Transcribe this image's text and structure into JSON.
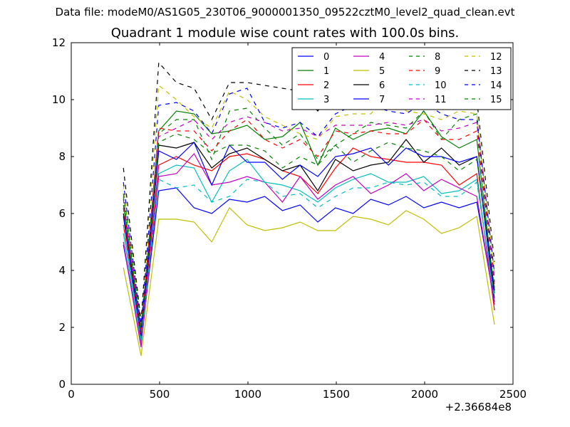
{
  "header": {
    "suptitle": "Data file: modeM0/AS1G05_230T06_9000001350_09522cztM0_level2_quad_clean.evt",
    "title": "Quadrant 1 module wise count rates with 100.0s bins."
  },
  "chart_data": {
    "type": "line",
    "title": "Quadrant 1 module wise count rates with 100.0s bins.",
    "xlabel": "",
    "ylabel": "",
    "x_offset_label": "+2.36684e8",
    "xlim": [
      0,
      2500
    ],
    "ylim": [
      0,
      12
    ],
    "x_ticks": [
      "0",
      "500",
      "1000",
      "1500",
      "2000",
      "2500"
    ],
    "y_ticks": [
      "0",
      "2",
      "4",
      "6",
      "8",
      "10",
      "12"
    ],
    "grid": false,
    "legend_placement": "top-right",
    "legend_columns": 4,
    "x": [
      295,
      395,
      495,
      595,
      695,
      795,
      895,
      995,
      1095,
      1195,
      1295,
      1395,
      1495,
      1595,
      1695,
      1795,
      1895,
      1995,
      2095,
      2195,
      2295,
      2395
    ],
    "series": [
      {
        "name": "0",
        "color": "#0000ff",
        "dash": "solid",
        "values": [
          4.9,
          1.5,
          6.8,
          6.9,
          6.2,
          6.0,
          6.5,
          6.4,
          6.6,
          6.1,
          6.3,
          5.7,
          6.2,
          6.0,
          6.5,
          6.3,
          6.6,
          6.2,
          6.4,
          6.2,
          6.4,
          2.9
        ]
      },
      {
        "name": "1",
        "color": "#008000",
        "dash": "solid",
        "values": [
          6.3,
          1.9,
          8.9,
          9.6,
          9.5,
          8.8,
          8.9,
          9.1,
          8.6,
          8.7,
          9.2,
          7.7,
          9.0,
          8.6,
          8.9,
          9.0,
          8.8,
          9.6,
          8.7,
          8.3,
          8.6,
          3.2
        ]
      },
      {
        "name": "2",
        "color": "#ff0000",
        "dash": "solid",
        "values": [
          5.6,
          1.6,
          7.7,
          8.0,
          7.7,
          7.5,
          8.0,
          8.1,
          7.9,
          7.5,
          7.3,
          6.7,
          7.6,
          8.3,
          8.0,
          7.9,
          7.8,
          7.8,
          7.7,
          7.0,
          7.4,
          2.6
        ]
      },
      {
        "name": "3",
        "color": "#00bfbf",
        "dash": "solid",
        "values": [
          5.3,
          1.4,
          7.4,
          7.7,
          7.6,
          6.4,
          7.5,
          7.9,
          7.1,
          7.0,
          6.8,
          6.4,
          6.9,
          7.2,
          7.4,
          7.1,
          7.1,
          7.3,
          6.7,
          6.8,
          7.2,
          3.0
        ]
      },
      {
        "name": "4",
        "color": "#bf00bf",
        "dash": "solid",
        "values": [
          5.0,
          1.3,
          7.3,
          7.4,
          8.1,
          7.0,
          7.1,
          7.3,
          7.1,
          6.4,
          7.3,
          6.5,
          7.0,
          7.3,
          6.7,
          7.0,
          7.4,
          6.8,
          7.2,
          6.9,
          6.6,
          2.8
        ]
      },
      {
        "name": "5",
        "color": "#bfbf00",
        "dash": "solid",
        "values": [
          4.1,
          1.0,
          5.8,
          5.8,
          5.7,
          5.0,
          6.2,
          5.6,
          5.4,
          5.5,
          5.7,
          5.4,
          5.4,
          5.9,
          5.8,
          5.6,
          6.1,
          5.8,
          5.3,
          5.5,
          5.9,
          2.1
        ]
      },
      {
        "name": "6",
        "color": "#000000",
        "dash": "solid",
        "values": [
          6.0,
          1.8,
          8.4,
          8.3,
          8.5,
          7.6,
          8.1,
          8.3,
          7.9,
          7.5,
          7.7,
          6.8,
          7.9,
          7.5,
          7.7,
          7.8,
          8.6,
          7.8,
          8.3,
          7.7,
          8.0,
          3.3
        ]
      },
      {
        "name": "7",
        "color": "#0000ff",
        "dash": "solid",
        "values": [
          5.9,
          1.7,
          8.2,
          7.9,
          8.5,
          7.0,
          8.4,
          7.8,
          7.8,
          7.2,
          7.7,
          7.3,
          8.0,
          8.1,
          8.3,
          7.7,
          8.3,
          8.0,
          8.0,
          7.8,
          8.0,
          3.0
        ]
      },
      {
        "name": "8",
        "color": "#008000",
        "dash": "dashed",
        "values": [
          6.7,
          2.0,
          8.8,
          9.3,
          9.3,
          7.9,
          9.6,
          9.7,
          9.0,
          8.4,
          8.8,
          7.9,
          8.4,
          8.8,
          9.2,
          9.1,
          9.0,
          9.6,
          8.6,
          9.3,
          9.5,
          3.7
        ]
      },
      {
        "name": "9",
        "color": "#ff0000",
        "dash": "dashed",
        "values": [
          6.2,
          1.8,
          9.0,
          8.9,
          8.9,
          8.2,
          8.9,
          9.3,
          8.6,
          8.3,
          8.6,
          8.0,
          8.9,
          8.8,
          8.9,
          8.8,
          8.8,
          9.3,
          8.6,
          8.6,
          8.9,
          3.5
        ]
      },
      {
        "name": "10",
        "color": "#00bfbf",
        "dash": "dashed",
        "values": [
          5.6,
          1.5,
          7.2,
          6.9,
          7.0,
          6.4,
          6.6,
          7.2,
          7.1,
          6.6,
          6.7,
          6.2,
          6.6,
          6.9,
          6.9,
          7.1,
          7.0,
          7.1,
          6.6,
          6.6,
          7.1,
          3.0
        ]
      },
      {
        "name": "11",
        "color": "#bf00bf",
        "dash": "dashed",
        "values": [
          6.5,
          1.9,
          8.7,
          9.0,
          9.3,
          8.6,
          9.2,
          9.4,
          9.2,
          8.9,
          9.0,
          8.7,
          9.1,
          9.1,
          9.1,
          9.2,
          9.1,
          9.3,
          8.9,
          9.0,
          9.2,
          3.6
        ]
      },
      {
        "name": "12",
        "color": "#bfbf00",
        "dash": "dashed",
        "values": [
          7.0,
          2.2,
          10.5,
          10.0,
          9.4,
          9.0,
          10.3,
          10.0,
          9.4,
          9.1,
          8.8,
          8.6,
          9.4,
          9.5,
          9.5,
          10.2,
          9.6,
          9.5,
          9.3,
          9.6,
          9.5,
          3.9
        ]
      },
      {
        "name": "13",
        "color": "#000000",
        "dash": "dashed",
        "values": [
          7.6,
          2.2,
          11.3,
          10.6,
          10.4,
          9.3,
          10.6,
          10.6,
          10.5,
          10.4,
          10.3,
          9.6,
          10.5,
          10.5,
          10.4,
          10.6,
          10.4,
          10.3,
          10.0,
          9.9,
          10.0,
          4.3
        ]
      },
      {
        "name": "14",
        "color": "#0000ff",
        "dash": "dashed",
        "values": [
          7.1,
          2.0,
          9.8,
          9.9,
          9.6,
          8.8,
          10.2,
          10.4,
          9.2,
          9.0,
          9.2,
          8.7,
          9.5,
          9.8,
          9.8,
          9.6,
          9.5,
          9.9,
          9.5,
          9.3,
          9.3,
          3.9
        ]
      },
      {
        "name": "15",
        "color": "#008000",
        "dash": "dashed",
        "values": [
          6.6,
          1.8,
          8.5,
          8.8,
          8.6,
          8.1,
          8.4,
          8.4,
          8.2,
          7.6,
          8.0,
          7.7,
          8.4,
          7.8,
          8.2,
          8.5,
          8.3,
          8.2,
          8.0,
          7.5,
          7.9,
          3.4
        ]
      }
    ]
  }
}
